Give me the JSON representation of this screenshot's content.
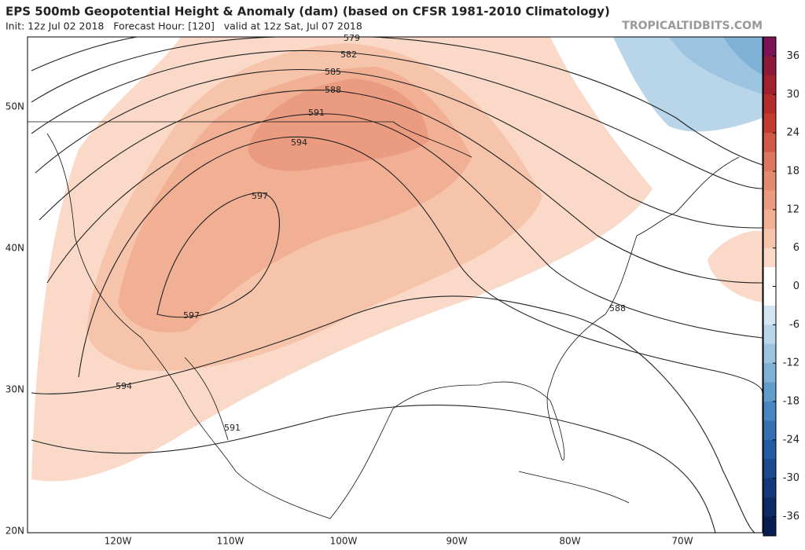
{
  "header": {
    "title": "EPS 500mb Geopotential Height & Anomaly (dam) (based on CFSR 1981-2010 Climatology)",
    "subtitle": "Init: 12z Jul 02 2018   Forecast Hour: [120]   valid at 12z Sat, Jul 07 2018",
    "watermark": "TROPICALTIDBITS.COM"
  },
  "map": {
    "lat_labels": [
      "50N",
      "40N",
      "30N",
      "20N"
    ],
    "lon_labels": [
      "120W",
      "110W",
      "100W",
      "90W",
      "80W",
      "70W"
    ],
    "contour_labels": [
      "579",
      "582",
      "585",
      "588",
      "591",
      "594",
      "597",
      "597",
      "588",
      "594",
      "591"
    ]
  },
  "colorbar": {
    "lim": [
      -39,
      39
    ],
    "ticks": [
      36,
      30,
      24,
      18,
      12,
      6,
      0,
      -6,
      -12,
      -18,
      -24,
      -30,
      -36
    ],
    "colors": [
      "#7a1454",
      "#8c1a3a",
      "#a12130",
      "#b42d2a",
      "#c43c30",
      "#d05a46",
      "#dc7660",
      "#e48a6f",
      "#eb9c80",
      "#f1b094",
      "#f6c4ab",
      "#fad9c8",
      "#ffffff",
      "#ffffff",
      "#d4e6f2",
      "#b8d5ea",
      "#9cc4e1",
      "#7fb1d6",
      "#629ccb",
      "#4886bf",
      "#3470b1",
      "#245ca1",
      "#1b4a8f",
      "#14397a",
      "#0d2a66",
      "#081d52"
    ]
  }
}
